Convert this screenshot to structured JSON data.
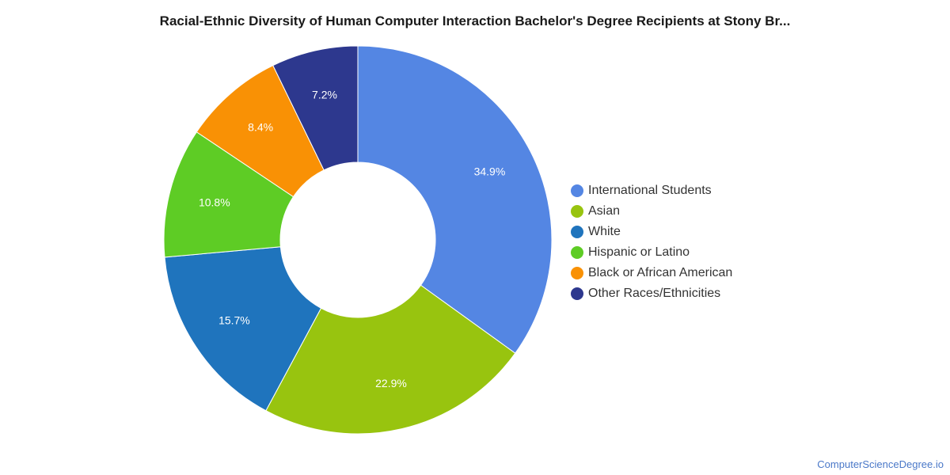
{
  "chart_data": {
    "type": "pie",
    "title": "Racial-Ethnic Diversity of Human Computer Interaction Bachelor's Degree Recipients at Stony Br...",
    "donut": true,
    "legend_position": "right",
    "slices": [
      {
        "label": "International Students",
        "value": 34.9,
        "value_label": "34.9%",
        "color": "#5486e3"
      },
      {
        "label": "Asian",
        "value": 22.9,
        "value_label": "22.9%",
        "color": "#98c40f"
      },
      {
        "label": "White",
        "value": 15.7,
        "value_label": "15.7%",
        "color": "#1f74bd"
      },
      {
        "label": "Hispanic or Latino",
        "value": 10.8,
        "value_label": "10.8%",
        "color": "#5ecc25"
      },
      {
        "label": "Black or African American",
        "value": 8.4,
        "value_label": "8.4%",
        "color": "#f99105"
      },
      {
        "label": "Other Races/Ethnicities",
        "value": 7.2,
        "value_label": "7.2%",
        "color": "#2d388e"
      }
    ]
  },
  "footer": {
    "credit": "ComputerScienceDegree.io"
  }
}
